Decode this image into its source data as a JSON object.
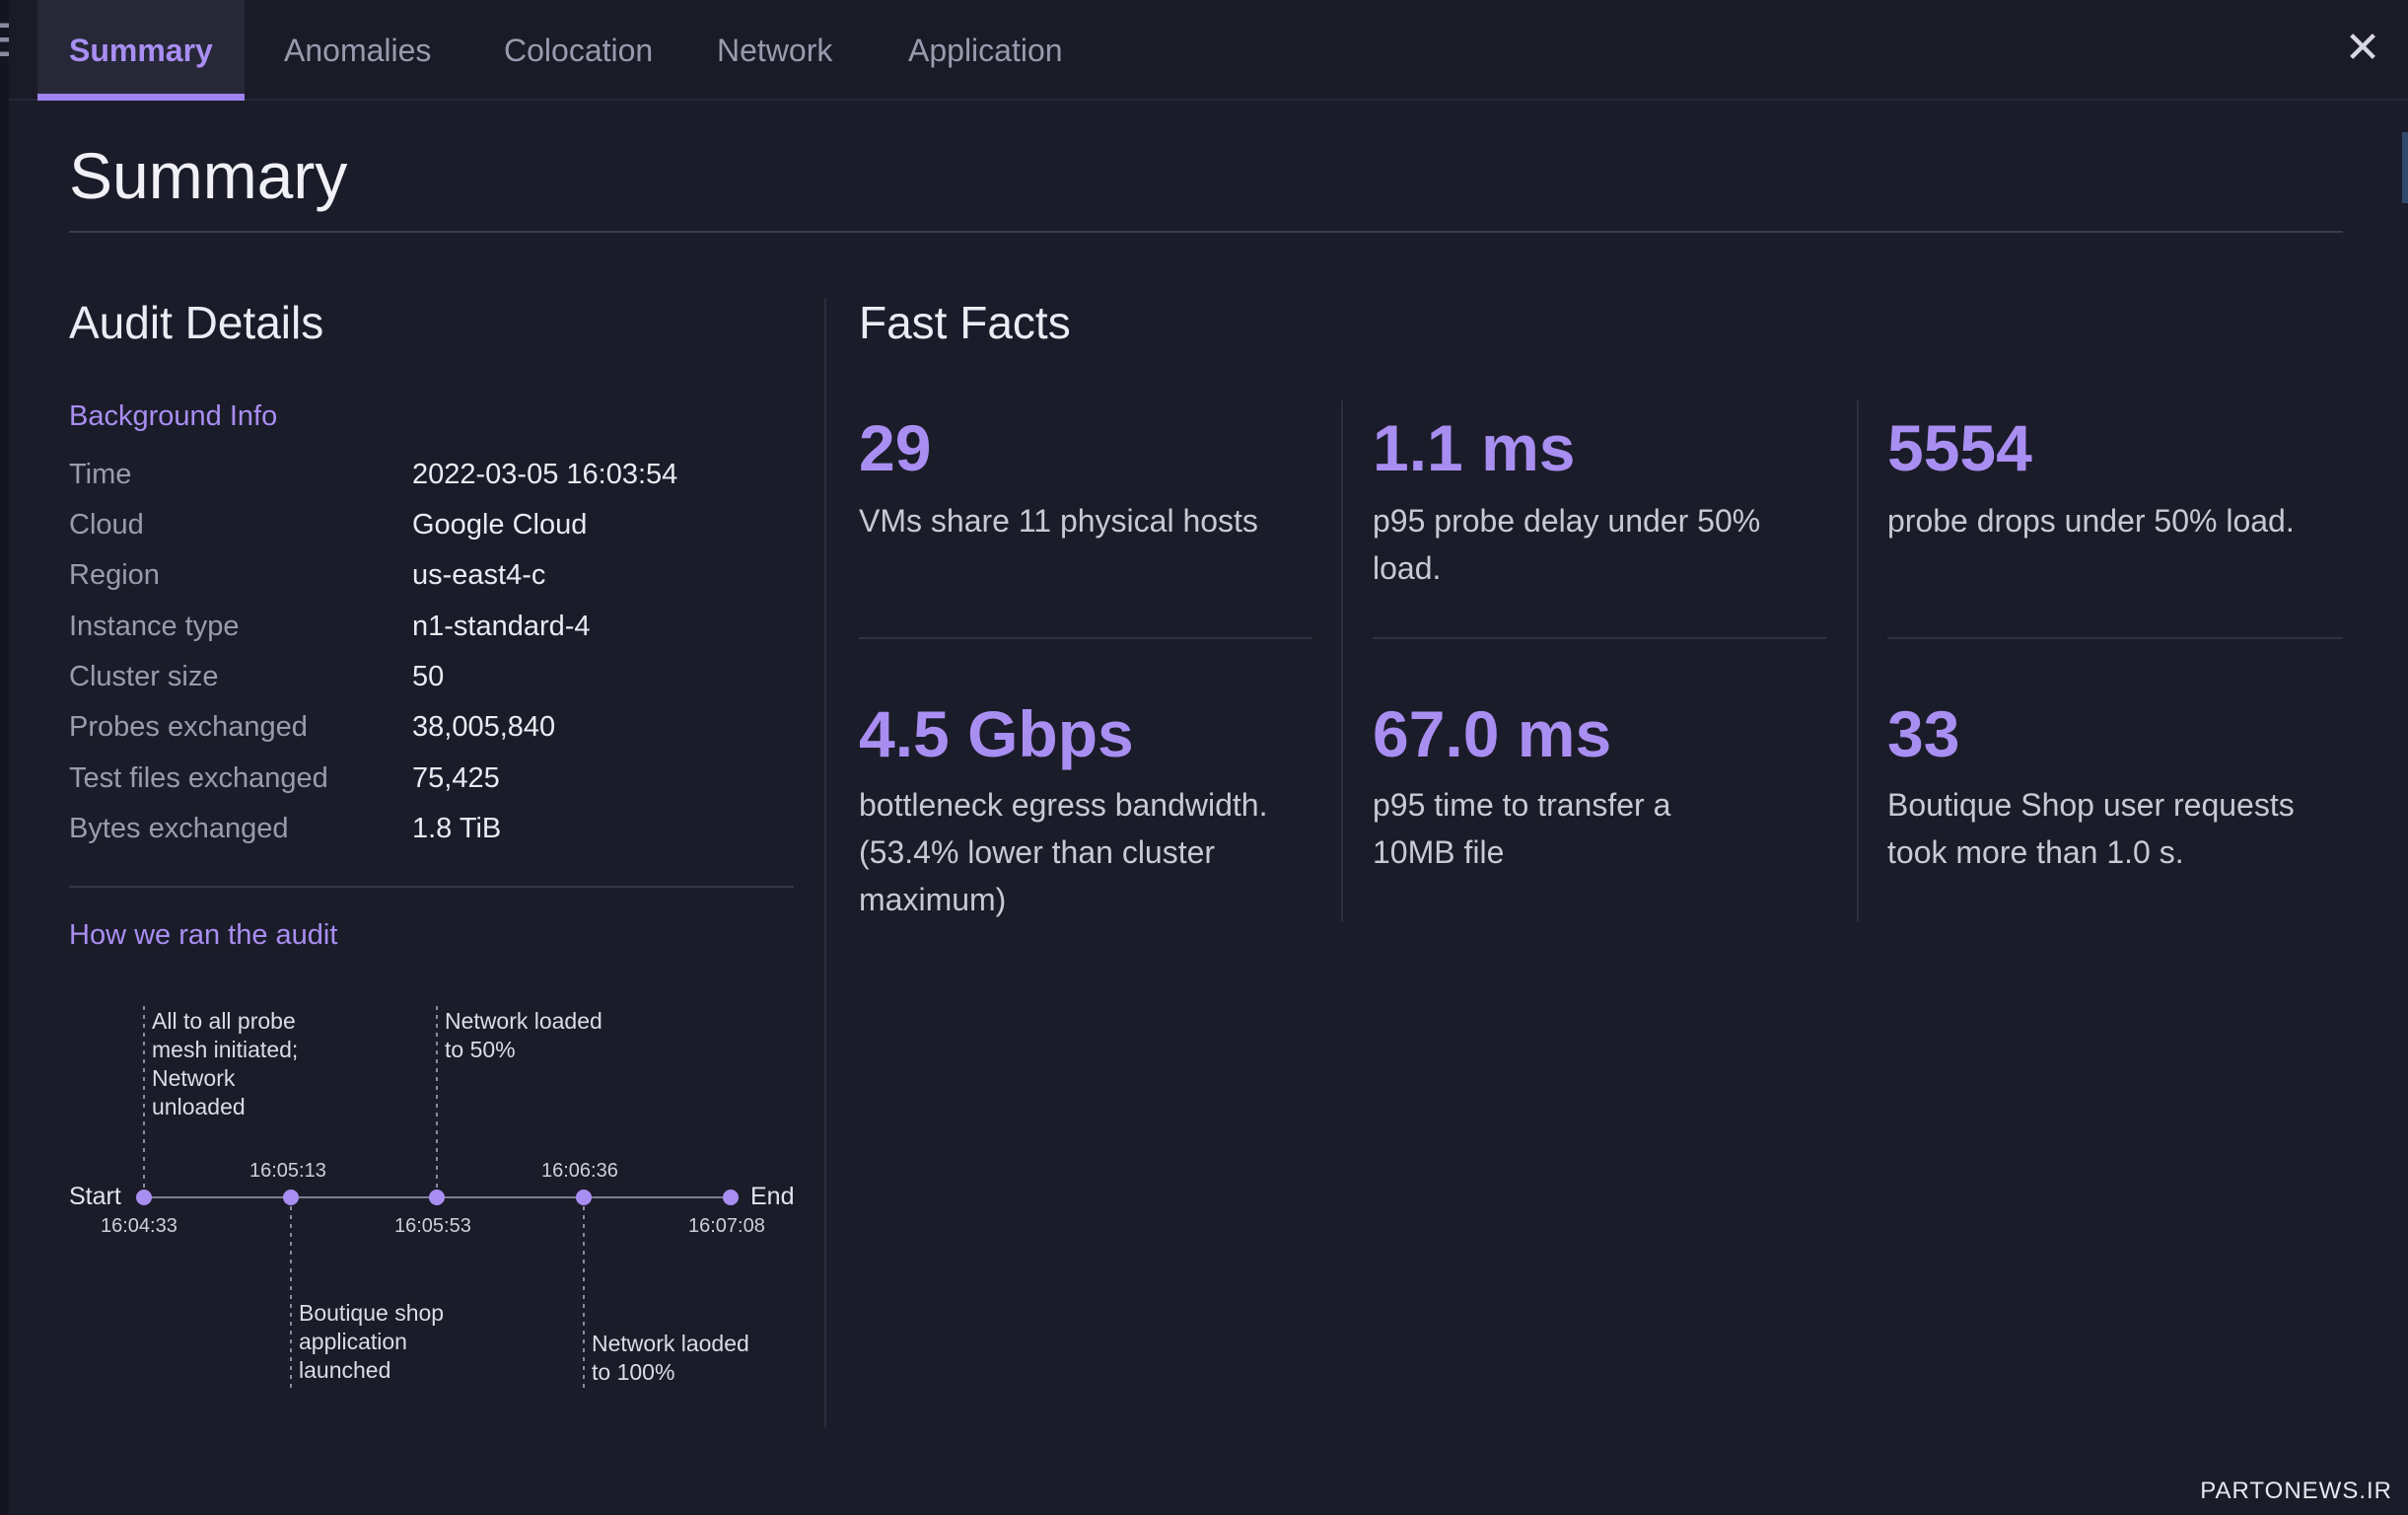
{
  "tabs": [
    {
      "label": "Summary",
      "active": true
    },
    {
      "label": "Anomalies"
    },
    {
      "label": "Colocation"
    },
    {
      "label": "Network"
    },
    {
      "label": "Application"
    }
  ],
  "close_icon": "close-icon",
  "page_title": "Summary",
  "audit": {
    "heading": "Audit Details",
    "background_heading": "Background Info",
    "rows": [
      {
        "label": "Time",
        "value": "2022-03-05 16:03:54"
      },
      {
        "label": "Cloud",
        "value": "Google Cloud"
      },
      {
        "label": "Region",
        "value": "us-east4-c"
      },
      {
        "label": "Instance type",
        "value": "n1-standard-4"
      },
      {
        "label": "Cluster size",
        "value": "50"
      },
      {
        "label": "Probes exchanged",
        "value": "38,005,840"
      },
      {
        "label": "Test files exchanged",
        "value": "75,425"
      },
      {
        "label": "Bytes exchanged",
        "value": "1.8 TiB"
      }
    ],
    "how_heading": "How we ran the audit",
    "timeline": {
      "start_label": "Start",
      "end_label": "End",
      "times": [
        "16:04:33",
        "16:05:13",
        "16:05:53",
        "16:06:36",
        "16:07:08"
      ],
      "events": [
        {
          "text": [
            "All to all probe",
            "mesh initiated;",
            "Network",
            "unloaded"
          ]
        },
        {
          "text": [
            "Boutique shop",
            "application",
            "launched"
          ]
        },
        {
          "text": [
            "Network loaded",
            "to 50%"
          ]
        },
        {
          "text": [
            "Network laoded",
            "to 100%"
          ]
        }
      ]
    }
  },
  "facts": {
    "heading": "Fast Facts",
    "items": [
      {
        "value": "29",
        "desc": [
          "VMs share 11 physical hosts"
        ]
      },
      {
        "value": "1.1 ms",
        "desc": [
          "p95 probe delay under 50%",
          "load."
        ]
      },
      {
        "value": "5554",
        "desc": [
          "probe drops under 50% load."
        ]
      },
      {
        "value": "4.5 Gbps",
        "desc": [
          "bottleneck egress bandwidth.",
          "(53.4% lower than cluster",
          "maximum)"
        ]
      },
      {
        "value": "67.0 ms",
        "desc": [
          "p95 time to transfer a",
          "10MB file"
        ]
      },
      {
        "value": "33",
        "desc": [
          "Boutique Shop user requests",
          "took more than 1.0 s."
        ]
      }
    ]
  },
  "watermark": "PARTONEWS.IR",
  "colors": {
    "accent": "#a98ef2",
    "background": "#1b1c29",
    "tabbar": "#1a1b27"
  }
}
